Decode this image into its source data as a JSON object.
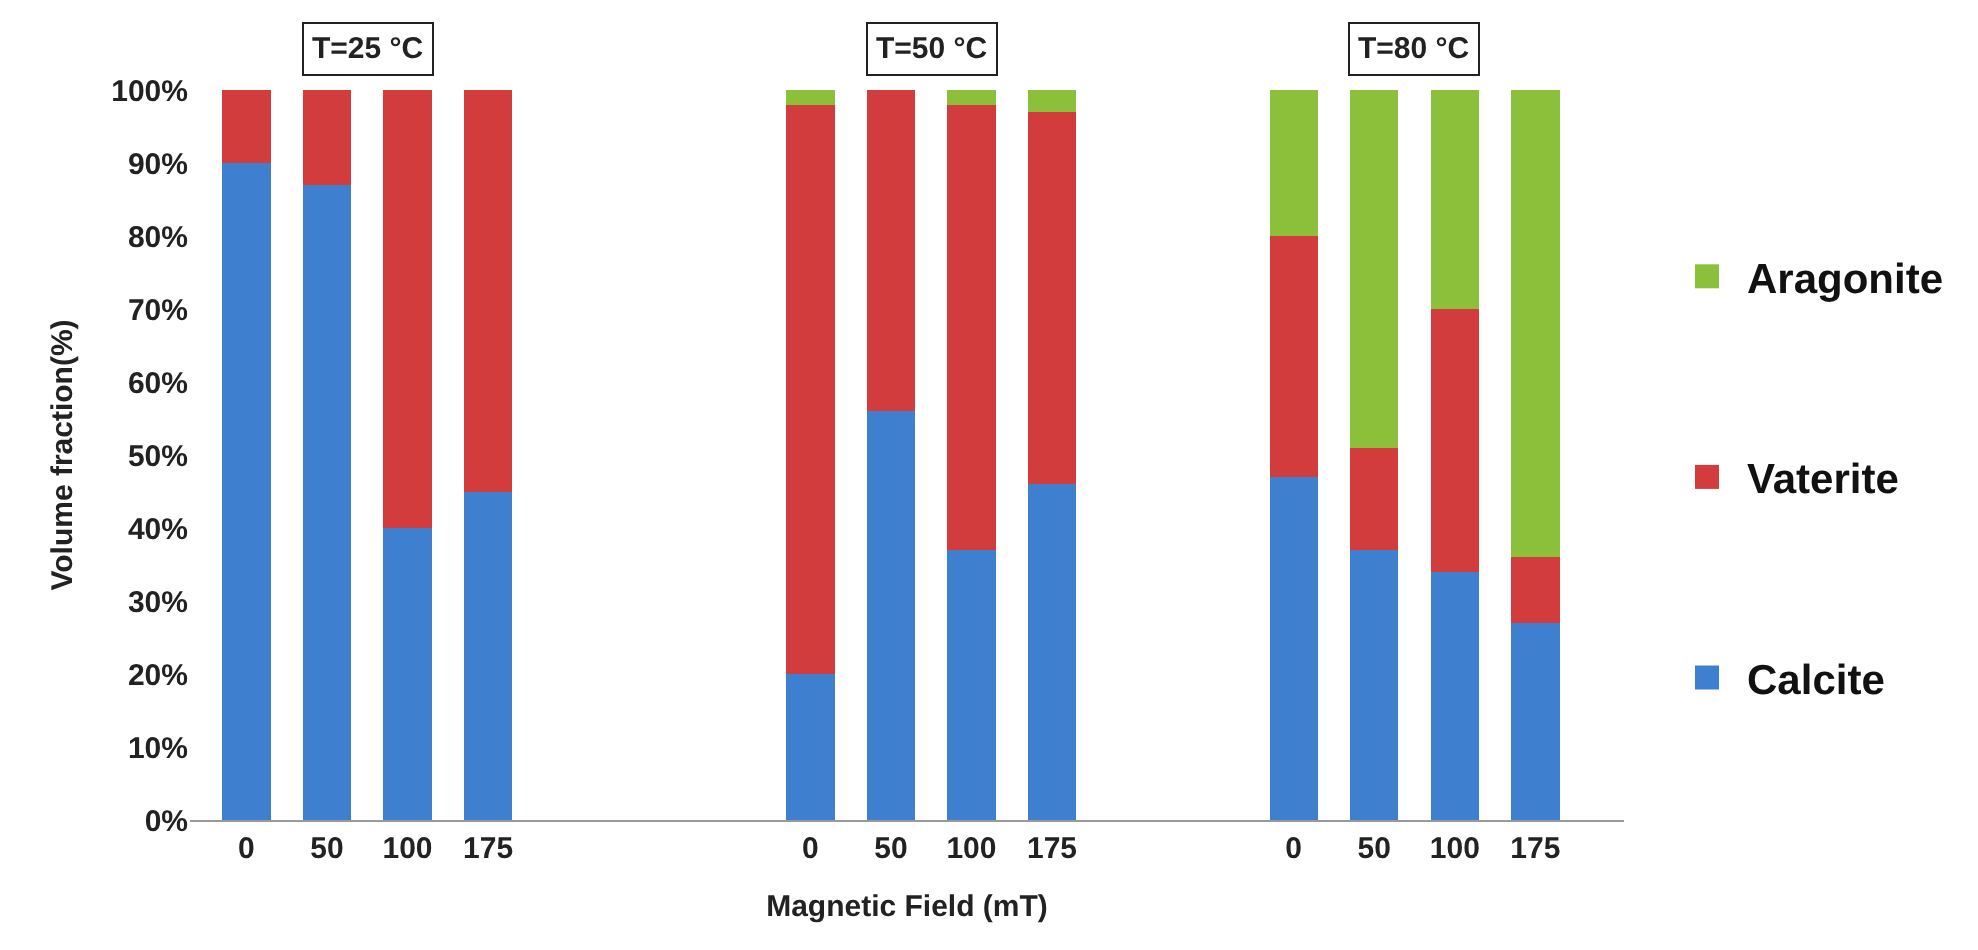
{
  "chart_data": {
    "type": "bar",
    "stacked": true,
    "xlabel": "Magnetic Field (mT)",
    "ylabel": "Volume fraction(%)",
    "categories": [
      "0",
      "50",
      "100",
      "175",
      null,
      null,
      null,
      "0",
      "50",
      "100",
      "175",
      null,
      null,
      "0",
      "50",
      "100",
      "175"
    ],
    "series": [
      {
        "name": "Calcite",
        "color": "#3f7fcf",
        "values": [
          90,
          87,
          40,
          45,
          null,
          null,
          null,
          20,
          56,
          37,
          46,
          null,
          null,
          47,
          37,
          34,
          27
        ]
      },
      {
        "name": "Vaterite",
        "color": "#d23c3c",
        "values": [
          10,
          13,
          60,
          55,
          null,
          null,
          null,
          78,
          44,
          61,
          51,
          null,
          null,
          33,
          14,
          36,
          9
        ]
      },
      {
        "name": "Aragonite",
        "color": "#8cbf3a",
        "values": [
          null,
          null,
          null,
          null,
          null,
          null,
          null,
          2,
          null,
          2,
          3,
          null,
          null,
          20,
          49,
          30,
          64
        ]
      }
    ],
    "ylim": [
      0,
      100
    ],
    "yticks": [
      {
        "value": 0,
        "label": "0%"
      },
      {
        "value": 10,
        "label": "10%"
      },
      {
        "value": 20,
        "label": "20%"
      },
      {
        "value": 30,
        "label": "30%"
      },
      {
        "value": 40,
        "label": "40%"
      },
      {
        "value": 50,
        "label": "50%"
      },
      {
        "value": 60,
        "label": "60%"
      },
      {
        "value": 70,
        "label": "70%"
      },
      {
        "value": 80,
        "label": "80%"
      },
      {
        "value": 90,
        "label": "90%"
      },
      {
        "value": 100,
        "label": "100%"
      }
    ],
    "annotations": [
      "T=25 °C",
      "T=50 °C",
      "T=80 °C"
    ],
    "legend": "right"
  }
}
